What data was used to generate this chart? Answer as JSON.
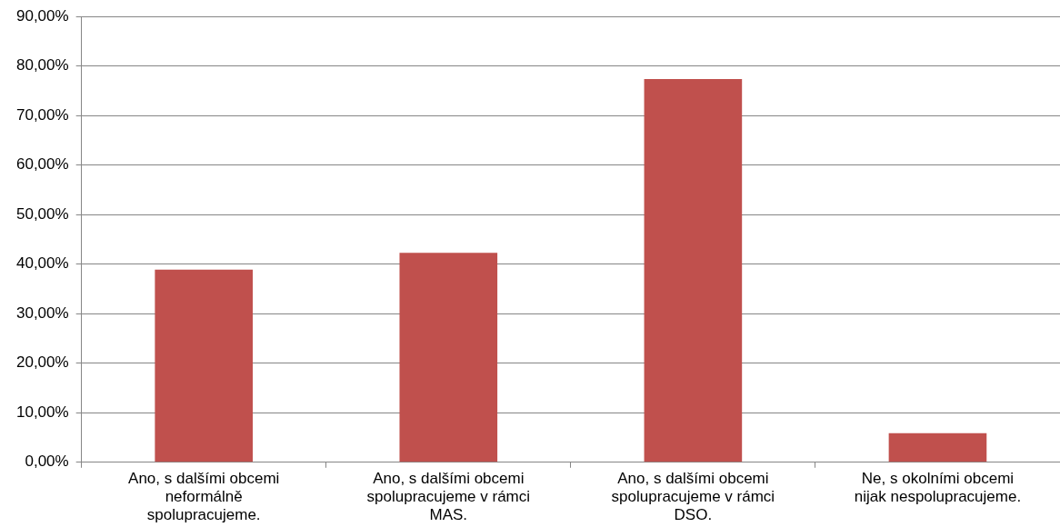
{
  "chart_data": {
    "type": "bar",
    "categories": [
      "Ano, s dalšími obcemi neformálně spolupracujeme.",
      "Ano, s dalšími obcemi spolupracujeme v rámci MAS.",
      "Ano, s dalšími obcemi spolupracujeme v rámci DSO.",
      "Ne, s okolními obcemi nijak nespolupracujeme."
    ],
    "values": [
      38.9,
      42.3,
      77.4,
      5.9
    ],
    "color": "#c0504d",
    "ylim": [
      0,
      90
    ],
    "yticks": [
      {
        "value": 0,
        "label": "0,00%"
      },
      {
        "value": 10,
        "label": "10,00%"
      },
      {
        "value": 20,
        "label": "20,00%"
      },
      {
        "value": 30,
        "label": "30,00%"
      },
      {
        "value": 40,
        "label": "40,00%"
      },
      {
        "value": 50,
        "label": "50,00%"
      },
      {
        "value": 60,
        "label": "60,00%"
      },
      {
        "value": 70,
        "label": "70,00%"
      },
      {
        "value": 80,
        "label": "80,00%"
      },
      {
        "value": 90,
        "label": "90,00%"
      }
    ],
    "grid": "y",
    "legend": false
  }
}
